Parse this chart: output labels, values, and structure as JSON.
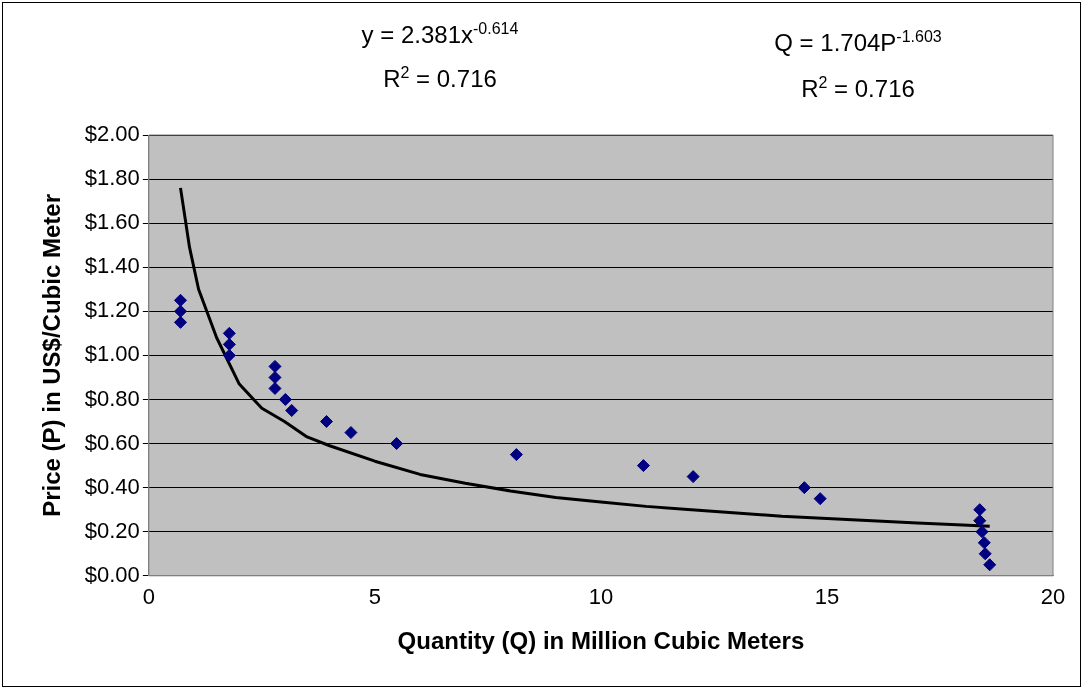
{
  "chart_data": {
    "type": "scatter",
    "xlabel": "Quantity (Q) in Million Cubic Meters",
    "ylabel": "Price (P) in US$/Cubic Meter",
    "xlim": [
      0,
      20
    ],
    "xticks": [
      0,
      5,
      10,
      15,
      20
    ],
    "ylim": [
      0,
      2
    ],
    "yticks": [
      {
        "value": 0,
        "label": "$0.00"
      },
      {
        "value": 0.2,
        "label": "$0.20"
      },
      {
        "value": 0.4,
        "label": "$0.40"
      },
      {
        "value": 0.6,
        "label": "$0.60"
      },
      {
        "value": 0.8,
        "label": "$0.80"
      },
      {
        "value": 1,
        "label": "$1.00"
      },
      {
        "value": 1.2,
        "label": "$1.20"
      },
      {
        "value": 1.4,
        "label": "$1.40"
      },
      {
        "value": 1.6,
        "label": "$1.60"
      },
      {
        "value": 1.8,
        "label": "$1.80"
      },
      {
        "value": 2,
        "label": "$2.00"
      }
    ],
    "grid": "y",
    "legend": false,
    "series": [
      {
        "type": "scatter",
        "color": "#000080",
        "marker": "diamond",
        "x": [
          0.7,
          0.7,
          0.7,
          1.78,
          1.78,
          1.78,
          2.79,
          2.79,
          2.79,
          3.02,
          3.16,
          3.93,
          4.47,
          5.48,
          8.13,
          10.94,
          12.04,
          14.5,
          14.85,
          18.38,
          18.38,
          18.43,
          18.48,
          18.5,
          18.6
        ],
        "values": [
          1.25,
          1.2,
          1.15,
          1.1,
          1.05,
          1.0,
          0.95,
          0.9,
          0.85,
          0.8,
          0.75,
          0.7,
          0.65,
          0.6,
          0.55,
          0.5,
          0.45,
          0.4,
          0.35,
          0.3,
          0.25,
          0.2,
          0.15,
          0.1,
          0.05
        ]
      },
      {
        "type": "line",
        "color": "#000000",
        "marker": "none",
        "line_style": "solid",
        "x": [
          0.7,
          0.9,
          1.1,
          1.5,
          2.0,
          2.5,
          3.0,
          3.5,
          4,
          5,
          6,
          7,
          8,
          9,
          10,
          11,
          12,
          13,
          14,
          15,
          16,
          17,
          18,
          18.6
        ],
        "values": [
          1.76,
          1.49,
          1.3,
          1.08,
          0.87,
          0.76,
          0.7,
          0.63,
          0.59,
          0.52,
          0.46,
          0.42,
          0.385,
          0.355,
          0.335,
          0.315,
          0.3,
          0.285,
          0.27,
          0.26,
          0.25,
          0.24,
          0.23,
          0.225
        ]
      }
    ],
    "annotations": [
      "y = 2.381x$^{-0.614}$",
      "R$^{2}$ = 0.716",
      "Q = 1.704P$^{-1.603}$",
      "R$^{2}$ = 0.716"
    ]
  }
}
